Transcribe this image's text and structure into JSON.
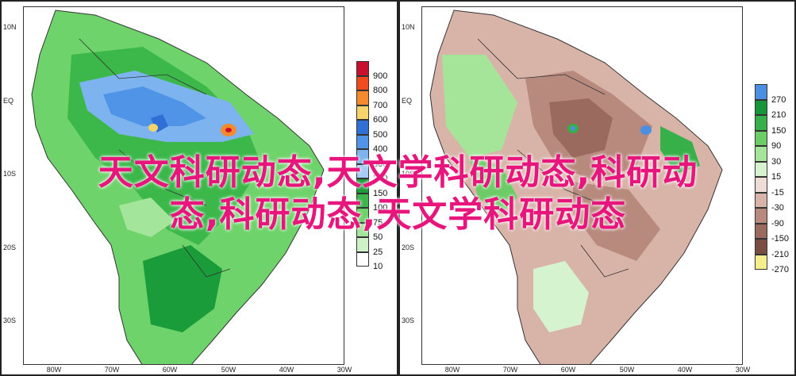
{
  "left_panel": {
    "latitude_labels": [
      "10N",
      "EQ",
      "10S",
      "20S",
      "30S"
    ],
    "longitude_labels": [
      "80W",
      "70W",
      "60W",
      "50W",
      "40W",
      "30W"
    ],
    "legend": {
      "labels": [
        "900",
        "800",
        "700",
        "600",
        "500",
        "400",
        "300",
        "200",
        "150",
        "100",
        "75",
        "50",
        "25",
        "10"
      ],
      "colors": [
        "#c8102e",
        "#f04a1e",
        "#f58a2c",
        "#f7d46b",
        "#2f6fd6",
        "#4f94e6",
        "#7db4f0",
        "#a8cdf4",
        "#1a9c3a",
        "#3cb84a",
        "#6fd36b",
        "#a2e59b",
        "#cff1c7",
        "#ffffff"
      ]
    }
  },
  "right_panel": {
    "latitude_labels": [
      "10N",
      "EQ",
      "10S",
      "20S",
      "30S"
    ],
    "longitude_labels": [
      "80W",
      "70W",
      "60W",
      "50W",
      "40W",
      "30W"
    ],
    "legend": {
      "labels": [
        "270",
        "210",
        "150",
        "90",
        "30",
        "15",
        "-15",
        "-30",
        "-90",
        "-150",
        "-210",
        "-270"
      ],
      "colors": [
        "#4c8fe0",
        "#16953a",
        "#37b04a",
        "#6ccc66",
        "#a4e59a",
        "#d6f3cf",
        "#efdcd6",
        "#d8b3a8",
        "#b88a7e",
        "#9a6a5e",
        "#7a4d43",
        "#f6ee8c"
      ]
    }
  },
  "overlay_text": {
    "line1": "天文科研动态,天文学科研动态,科研动",
    "line2": "态,科研动态,天文学科研动态"
  }
}
